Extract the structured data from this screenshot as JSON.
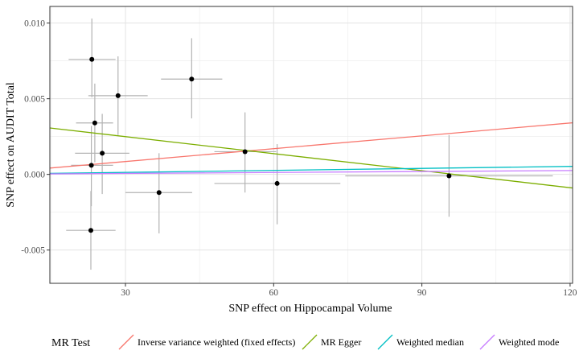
{
  "chart_data": {
    "type": "scatter",
    "xlabel": "SNP effect on Hippocampal Volume",
    "ylabel": "SNP effect on AUDIT Total",
    "xlim": [
      14.7,
      120.5
    ],
    "ylim": [
      -0.0072,
      0.0111
    ],
    "x_ticks": [
      30,
      60,
      90,
      120
    ],
    "x_tick_labels": [
      "30",
      "60",
      "90",
      "120"
    ],
    "y_ticks": [
      -0.005,
      0.0,
      0.005,
      0.01
    ],
    "y_tick_labels": [
      "-0.005",
      "0.000",
      "0.005",
      "0.010"
    ],
    "grid": true,
    "legend": {
      "title": "MR Test",
      "position": "bottom",
      "entries": [
        "Inverse variance weighted (fixed effects)",
        "MR Egger",
        "Weighted median",
        "Weighted mode"
      ]
    },
    "points": [
      {
        "x": 23.2,
        "y": 0.0076,
        "x_lo": 18.5,
        "x_hi": 28.0,
        "y_lo": 0.0051,
        "y_hi": 0.0103
      },
      {
        "x": 28.5,
        "y": 0.0052,
        "x_lo": 22.5,
        "x_hi": 34.5,
        "y_lo": 0.0026,
        "y_hi": 0.0078
      },
      {
        "x": 43.4,
        "y": 0.0063,
        "x_lo": 37.2,
        "x_hi": 49.6,
        "y_lo": 0.0037,
        "y_hi": 0.009
      },
      {
        "x": 23.8,
        "y": 0.0034,
        "x_lo": 20.0,
        "x_hi": 27.5,
        "y_lo": 0.0008,
        "y_hi": 0.006
      },
      {
        "x": 25.3,
        "y": 0.0014,
        "x_lo": 19.8,
        "x_hi": 30.8,
        "y_lo": -0.0013,
        "y_hi": 0.004
      },
      {
        "x": 23.1,
        "y": 0.0006,
        "x_lo": 19.0,
        "x_hi": 27.5,
        "y_lo": -0.0021,
        "y_hi": 0.0032
      },
      {
        "x": 54.2,
        "y": 0.0015,
        "x_lo": 48.0,
        "x_hi": 60.5,
        "y_lo": -0.0012,
        "y_hi": 0.0041
      },
      {
        "x": 36.8,
        "y": -0.0012,
        "x_lo": 30.0,
        "x_hi": 43.5,
        "y_lo": -0.0039,
        "y_hi": 0.0014
      },
      {
        "x": 60.7,
        "y": -0.0006,
        "x_lo": 48.0,
        "x_hi": 73.5,
        "y_lo": -0.0033,
        "y_hi": 0.002
      },
      {
        "x": 95.5,
        "y": -0.0001,
        "x_lo": 74.5,
        "x_hi": 116.5,
        "y_lo": -0.0028,
        "y_hi": 0.0026
      },
      {
        "x": 23.0,
        "y": -0.0037,
        "x_lo": 18.0,
        "x_hi": 28.0,
        "y_lo": -0.0063,
        "y_hi": -0.0011
      }
    ],
    "series": [
      {
        "name": "Inverse variance weighted (fixed effects)",
        "color": "#F8766D",
        "intercept": 0.0,
        "slope": 2.83e-05
      },
      {
        "name": "MR Egger",
        "color": "#7CAE00",
        "intercept": 0.00362,
        "slope": -3.75e-05
      },
      {
        "name": "Weighted median",
        "color": "#00BFC4",
        "intercept": 0.0,
        "slope": 4.4e-06
      },
      {
        "name": "Weighted mode",
        "color": "#C77CFF",
        "intercept": 0.0,
        "slope": 2.1e-06
      }
    ]
  }
}
